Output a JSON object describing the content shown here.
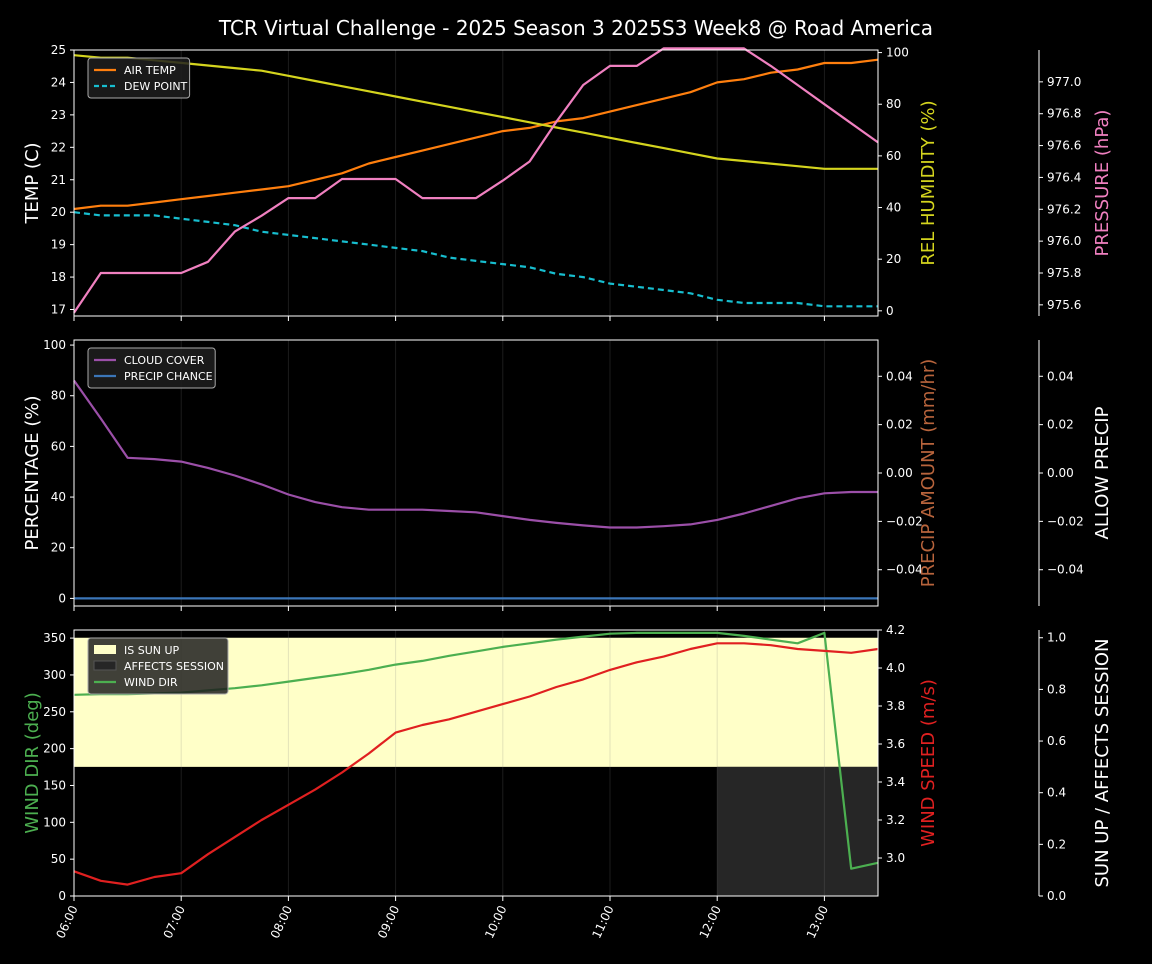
{
  "title": "TCR Virtual Challenge - 2025 Season 3 2025S3 Week8 @ Road America",
  "x_ticks": [
    "06:00",
    "07:00",
    "08:00",
    "09:00",
    "10:00",
    "11:00",
    "12:00",
    "13:00"
  ],
  "colors": {
    "air_temp": "#ff7f0e",
    "dew_point": "#17becf",
    "humidity": "#d4d41e",
    "pressure": "#f080c0",
    "cloud": "#9b4fa8",
    "precip_chance": "#3b76b8",
    "precip_amount": "#b8643c",
    "wind_dir": "#4caf50",
    "wind_speed": "#e02020",
    "sun_up": "#ffffc8",
    "affects": "#262626"
  },
  "chart_data": [
    {
      "type": "line",
      "panel": "temperature",
      "x": [
        6.0,
        6.25,
        6.5,
        6.75,
        7.0,
        7.25,
        7.5,
        7.75,
        8.0,
        8.25,
        8.5,
        8.75,
        9.0,
        9.25,
        9.5,
        9.75,
        10.0,
        10.25,
        10.5,
        10.75,
        11.0,
        11.25,
        11.5,
        11.75,
        12.0,
        12.25,
        12.5,
        12.75,
        13.0,
        13.25,
        13.5
      ],
      "ylabel": "TEMP (C)",
      "ylim": [
        16.8,
        25.0
      ],
      "y_ticks": [
        17,
        18,
        19,
        20,
        21,
        22,
        23,
        24,
        25
      ],
      "ylabel_right": "REL HUMIDITY (%)",
      "ylim_right": [
        -2,
        101
      ],
      "y_ticks_right": [
        0,
        20,
        40,
        60,
        80,
        100
      ],
      "ylabel_far": "PRESSURE (hPa)",
      "ylim_far": [
        975.53,
        977.2
      ],
      "y_ticks_far": [
        "975.6",
        "975.8",
        "976.0",
        "976.2",
        "976.4",
        "976.6",
        "976.8",
        "977.0"
      ],
      "legend": "top-left",
      "series": [
        {
          "name": "AIR TEMP",
          "axis": "left",
          "color_key": "air_temp",
          "dash": false,
          "values": [
            20.1,
            20.2,
            20.2,
            20.3,
            20.4,
            20.5,
            20.6,
            20.7,
            20.8,
            21.0,
            21.2,
            21.5,
            21.7,
            21.9,
            22.1,
            22.3,
            22.5,
            22.6,
            22.8,
            22.9,
            23.1,
            23.3,
            23.5,
            23.7,
            24.0,
            24.1,
            24.3,
            24.4,
            24.6,
            24.6,
            24.7
          ]
        },
        {
          "name": "DEW POINT",
          "axis": "left",
          "color_key": "dew_point",
          "dash": true,
          "values": [
            20.0,
            19.9,
            19.9,
            19.9,
            19.8,
            19.7,
            19.6,
            19.4,
            19.3,
            19.2,
            19.1,
            19.0,
            18.9,
            18.8,
            18.6,
            18.5,
            18.4,
            18.3,
            18.1,
            18.0,
            17.8,
            17.7,
            17.6,
            17.5,
            17.3,
            17.2,
            17.2,
            17.2,
            17.1,
            17.1,
            17.1
          ]
        },
        {
          "name": "REL HUMIDITY",
          "axis": "right",
          "color_key": "humidity",
          "values": [
            99,
            98,
            98,
            97,
            96,
            95,
            94,
            93,
            91,
            89,
            87,
            85,
            83,
            81,
            79,
            77,
            75,
            73,
            71,
            69,
            67,
            65,
            63,
            61,
            59,
            58,
            57,
            56,
            55,
            55,
            55
          ]
        },
        {
          "name": "PRESSURE",
          "axis": "far",
          "color_key": "pressure",
          "values": [
            975.55,
            975.8,
            975.8,
            975.8,
            975.8,
            975.87,
            976.06,
            976.16,
            976.27,
            976.27,
            976.39,
            976.39,
            976.39,
            976.27,
            976.27,
            976.27,
            976.38,
            976.5,
            976.75,
            976.98,
            977.1,
            977.1,
            977.21,
            977.21,
            977.21,
            977.21,
            977.1,
            976.98,
            976.86,
            976.74,
            976.62
          ]
        }
      ]
    },
    {
      "type": "line",
      "panel": "cloud",
      "x": [
        6.0,
        6.25,
        6.5,
        6.75,
        7.0,
        7.25,
        7.5,
        7.75,
        8.0,
        8.25,
        8.5,
        8.75,
        9.0,
        9.25,
        9.5,
        9.75,
        10.0,
        10.25,
        10.5,
        10.75,
        11.0,
        11.25,
        11.5,
        11.75,
        12.0,
        12.25,
        12.5,
        12.75,
        13.0,
        13.25,
        13.5
      ],
      "ylabel": "PERCENTAGE (%)",
      "ylim": [
        -3,
        102
      ],
      "y_ticks": [
        0,
        20,
        40,
        60,
        80,
        100
      ],
      "ylabel_right": "PRECIP AMOUNT (mm/hr)",
      "ylim_right": [
        -0.055,
        0.055
      ],
      "y_ticks_right": [
        "−0.04",
        "−0.02",
        "0.00",
        "0.02",
        "0.04"
      ],
      "ylabel_far": "ALLOW PRECIP",
      "ylim_far": [
        -0.055,
        0.055
      ],
      "y_ticks_far": [
        "−0.04",
        "−0.02",
        "0.00",
        "0.02",
        "0.04"
      ],
      "legend": "top-left",
      "series": [
        {
          "name": "CLOUD COVER",
          "color_key": "cloud",
          "values": [
            86,
            71,
            55.5,
            55,
            54,
            51.5,
            48.5,
            45,
            41,
            38,
            36,
            35,
            35,
            35,
            34.5,
            34,
            32.5,
            31,
            29.8,
            28.8,
            28,
            28,
            28.5,
            29.2,
            31,
            33.5,
            36.5,
            39.5,
            41.5,
            42,
            42
          ]
        },
        {
          "name": "PRECIP CHANCE",
          "color_key": "precip_chance",
          "values": [
            0,
            0,
            0,
            0,
            0,
            0,
            0,
            0,
            0,
            0,
            0,
            0,
            0,
            0,
            0,
            0,
            0,
            0,
            0,
            0,
            0,
            0,
            0,
            0,
            0,
            0,
            0,
            0,
            0,
            0,
            0
          ]
        }
      ]
    },
    {
      "type": "line",
      "panel": "wind",
      "x": [
        6.0,
        6.25,
        6.5,
        6.75,
        7.0,
        7.25,
        7.5,
        7.75,
        8.0,
        8.25,
        8.5,
        8.75,
        9.0,
        9.25,
        9.5,
        9.75,
        10.0,
        10.25,
        10.5,
        10.75,
        11.0,
        11.25,
        11.5,
        11.75,
        12.0,
        12.25,
        12.5,
        12.75,
        13.0,
        13.25,
        13.5
      ],
      "ylabel": "WIND DIR (deg)",
      "ylim": [
        0,
        361
      ],
      "y_ticks": [
        0,
        50,
        100,
        150,
        200,
        250,
        300,
        350
      ],
      "ylabel_right": "WIND SPEED (m/s)",
      "ylim_right": [
        2.8,
        4.2
      ],
      "y_ticks_right": [
        "3.0",
        "3.2",
        "3.4",
        "3.6",
        "3.8",
        "4.0",
        "4.2"
      ],
      "ylabel_far": "SUN UP / AFFECTS SESSION",
      "ylim_far": [
        0,
        1.03
      ],
      "y_ticks_far": [
        "0.0",
        "0.2",
        "0.4",
        "0.6",
        "0.8",
        "1.0"
      ],
      "legend": "top-left",
      "bands": [
        {
          "name": "IS SUN UP",
          "color_key": "sun_up",
          "x_range": [
            6.0,
            13.5
          ],
          "value_range": [
            0.5,
            1.0
          ]
        },
        {
          "name": "AFFECTS SESSION",
          "color_key": "affects",
          "x_range": [
            12.0,
            13.5
          ],
          "value_range": [
            0.0,
            0.5
          ]
        }
      ],
      "series": [
        {
          "name": "WIND DIR",
          "axis": "left",
          "color_key": "wind_dir",
          "values": [
            273,
            274,
            274,
            275,
            276,
            279,
            282,
            286,
            291,
            296,
            301,
            307,
            314,
            319,
            326,
            332,
            338,
            343,
            348,
            352,
            356,
            357,
            357,
            357,
            357,
            353,
            348,
            343,
            357,
            37,
            45
          ]
        },
        {
          "name": "WIND SPEED",
          "axis": "right",
          "color_key": "wind_speed",
          "values": [
            2.93,
            2.88,
            2.86,
            2.9,
            2.92,
            3.02,
            3.11,
            3.2,
            3.28,
            3.36,
            3.45,
            3.55,
            3.66,
            3.7,
            3.73,
            3.77,
            3.81,
            3.85,
            3.9,
            3.94,
            3.99,
            4.03,
            4.06,
            4.1,
            4.13,
            4.13,
            4.12,
            4.1,
            4.09,
            4.08,
            4.1
          ]
        }
      ]
    }
  ]
}
